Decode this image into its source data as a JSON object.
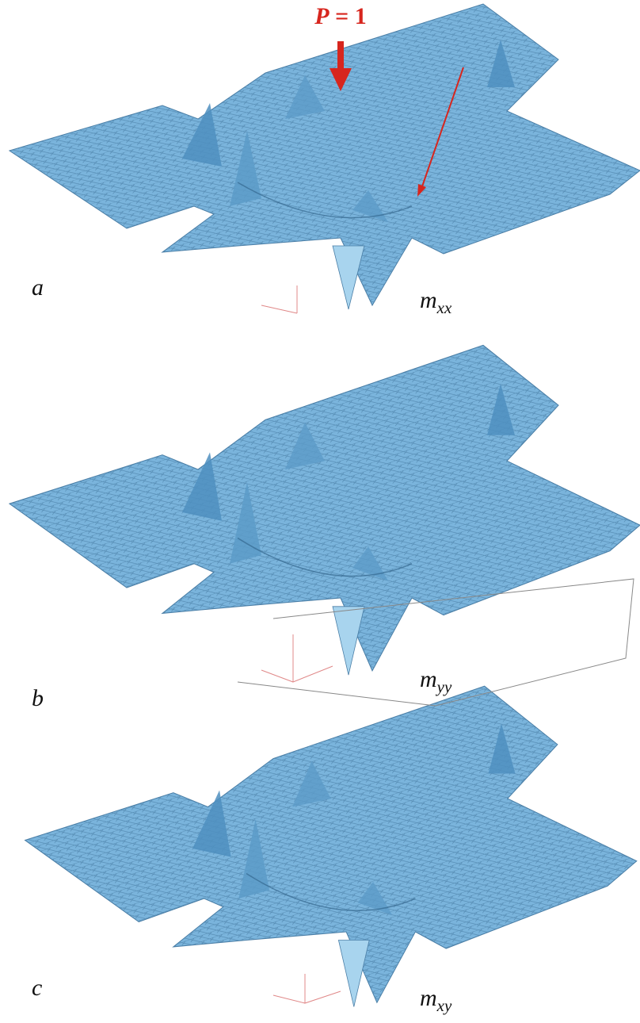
{
  "load": {
    "symbol": "P",
    "sign": "=",
    "value": 1
  },
  "panels": [
    {
      "label": "a",
      "quantity": {
        "base": "m",
        "sub": "xx"
      }
    },
    {
      "label": "b",
      "quantity": {
        "base": "m",
        "sub": "yy"
      }
    },
    {
      "label": "c",
      "quantity": {
        "base": "m",
        "sub": "xy"
      }
    }
  ]
}
